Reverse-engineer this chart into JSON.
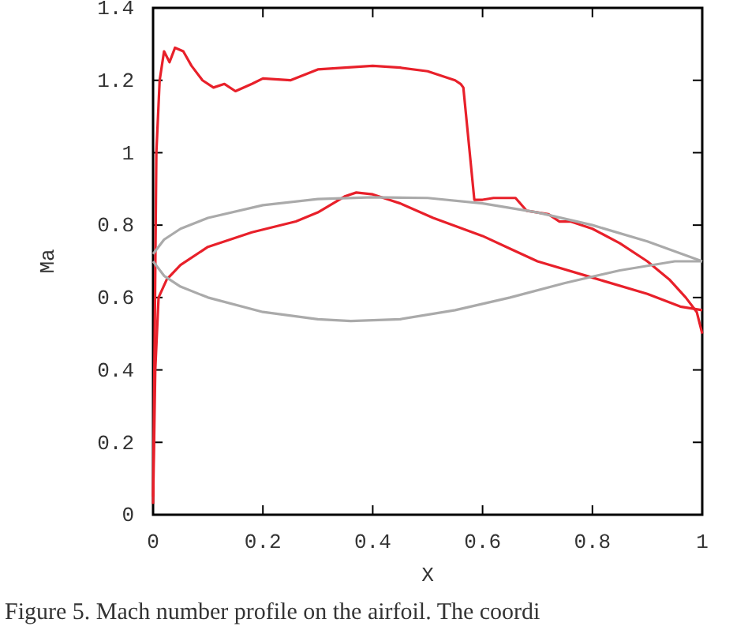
{
  "chart_data": {
    "type": "line",
    "xlabel": "X",
    "ylabel": "Ma",
    "xlim": [
      0,
      1
    ],
    "ylim": [
      0,
      1.4
    ],
    "xticks": [
      0,
      0.2,
      0.4,
      0.6,
      0.8,
      1
    ],
    "yticks": [
      0,
      0.2,
      0.4,
      0.6,
      0.8,
      1,
      1.2,
      1.4
    ],
    "grid": false,
    "marker": "none",
    "line_style": "solid",
    "annotations": [
      "Figure 5.  Mach number profile on the airfoil.  The coordi"
    ],
    "series": [
      {
        "color": "#e8202a",
        "x": [
          0,
          0.003,
          0.006,
          0.012,
          0.02,
          0.03,
          0.04,
          0.055,
          0.07,
          0.09,
          0.11,
          0.13,
          0.15,
          0.18,
          0.2,
          0.25,
          0.3,
          0.35,
          0.4,
          0.45,
          0.5,
          0.55,
          0.56,
          0.565,
          0.585,
          0.6,
          0.62,
          0.66,
          0.68,
          0.72,
          0.74,
          0.76,
          0.8,
          0.85,
          0.9,
          0.94,
          0.97,
          0.99,
          1.0
        ],
        "values": [
          0.05,
          0.5,
          1.0,
          1.2,
          1.28,
          1.25,
          1.29,
          1.28,
          1.24,
          1.2,
          1.18,
          1.19,
          1.17,
          1.19,
          1.205,
          1.2,
          1.23,
          1.235,
          1.24,
          1.235,
          1.225,
          1.2,
          1.19,
          1.18,
          0.87,
          0.87,
          0.875,
          0.875,
          0.84,
          0.83,
          0.81,
          0.81,
          0.79,
          0.75,
          0.7,
          0.65,
          0.6,
          0.56,
          0.5
        ]
      },
      {
        "color": "#e8202a",
        "x": [
          0,
          0.004,
          0.01,
          0.025,
          0.05,
          0.1,
          0.18,
          0.26,
          0.3,
          0.35,
          0.37,
          0.4,
          0.45,
          0.51,
          0.6,
          0.65,
          0.7,
          0.8,
          0.9,
          0.96,
          1.0
        ],
        "values": [
          0.03,
          0.4,
          0.6,
          0.65,
          0.69,
          0.74,
          0.78,
          0.81,
          0.835,
          0.88,
          0.89,
          0.885,
          0.86,
          0.82,
          0.77,
          0.735,
          0.7,
          0.655,
          0.61,
          0.575,
          0.565
        ]
      },
      {
        "color": "#aaaaaa",
        "x": [
          0,
          0.02,
          0.05,
          0.1,
          0.2,
          0.3,
          0.4,
          0.5,
          0.6,
          0.7,
          0.8,
          0.9,
          1.0
        ],
        "values": [
          0.72,
          0.76,
          0.79,
          0.82,
          0.855,
          0.872,
          0.877,
          0.875,
          0.86,
          0.835,
          0.8,
          0.755,
          0.7
        ]
      },
      {
        "color": "#aaaaaa",
        "x": [
          0,
          0.02,
          0.05,
          0.1,
          0.2,
          0.3,
          0.36,
          0.45,
          0.55,
          0.65,
          0.75,
          0.85,
          0.95,
          1.0
        ],
        "values": [
          0.7,
          0.66,
          0.63,
          0.6,
          0.56,
          0.54,
          0.535,
          0.54,
          0.565,
          0.6,
          0.64,
          0.675,
          0.7,
          0.7
        ]
      }
    ]
  }
}
